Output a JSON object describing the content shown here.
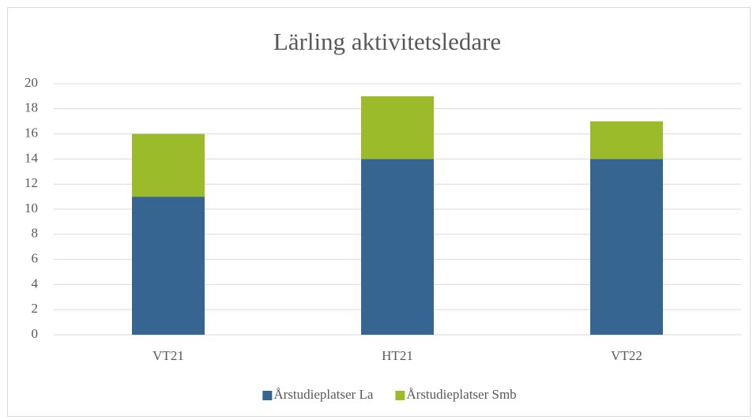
{
  "chart_data": {
    "type": "bar",
    "stacked": true,
    "title": "Lärling aktivitetsledare",
    "categories": [
      "VT21",
      "HT21",
      "VT22"
    ],
    "series": [
      {
        "name": "Årstudieplatser La",
        "color": "#376591",
        "values": [
          11,
          14,
          14
        ]
      },
      {
        "name": "Årstudieplatser Smb",
        "color": "#9bbb2a",
        "values": [
          5,
          5,
          3
        ]
      }
    ],
    "ylim": [
      0,
      20
    ],
    "yticks": [
      0,
      2,
      4,
      6,
      8,
      10,
      12,
      14,
      16,
      18,
      20
    ],
    "grid": true,
    "legend": "bottom"
  }
}
